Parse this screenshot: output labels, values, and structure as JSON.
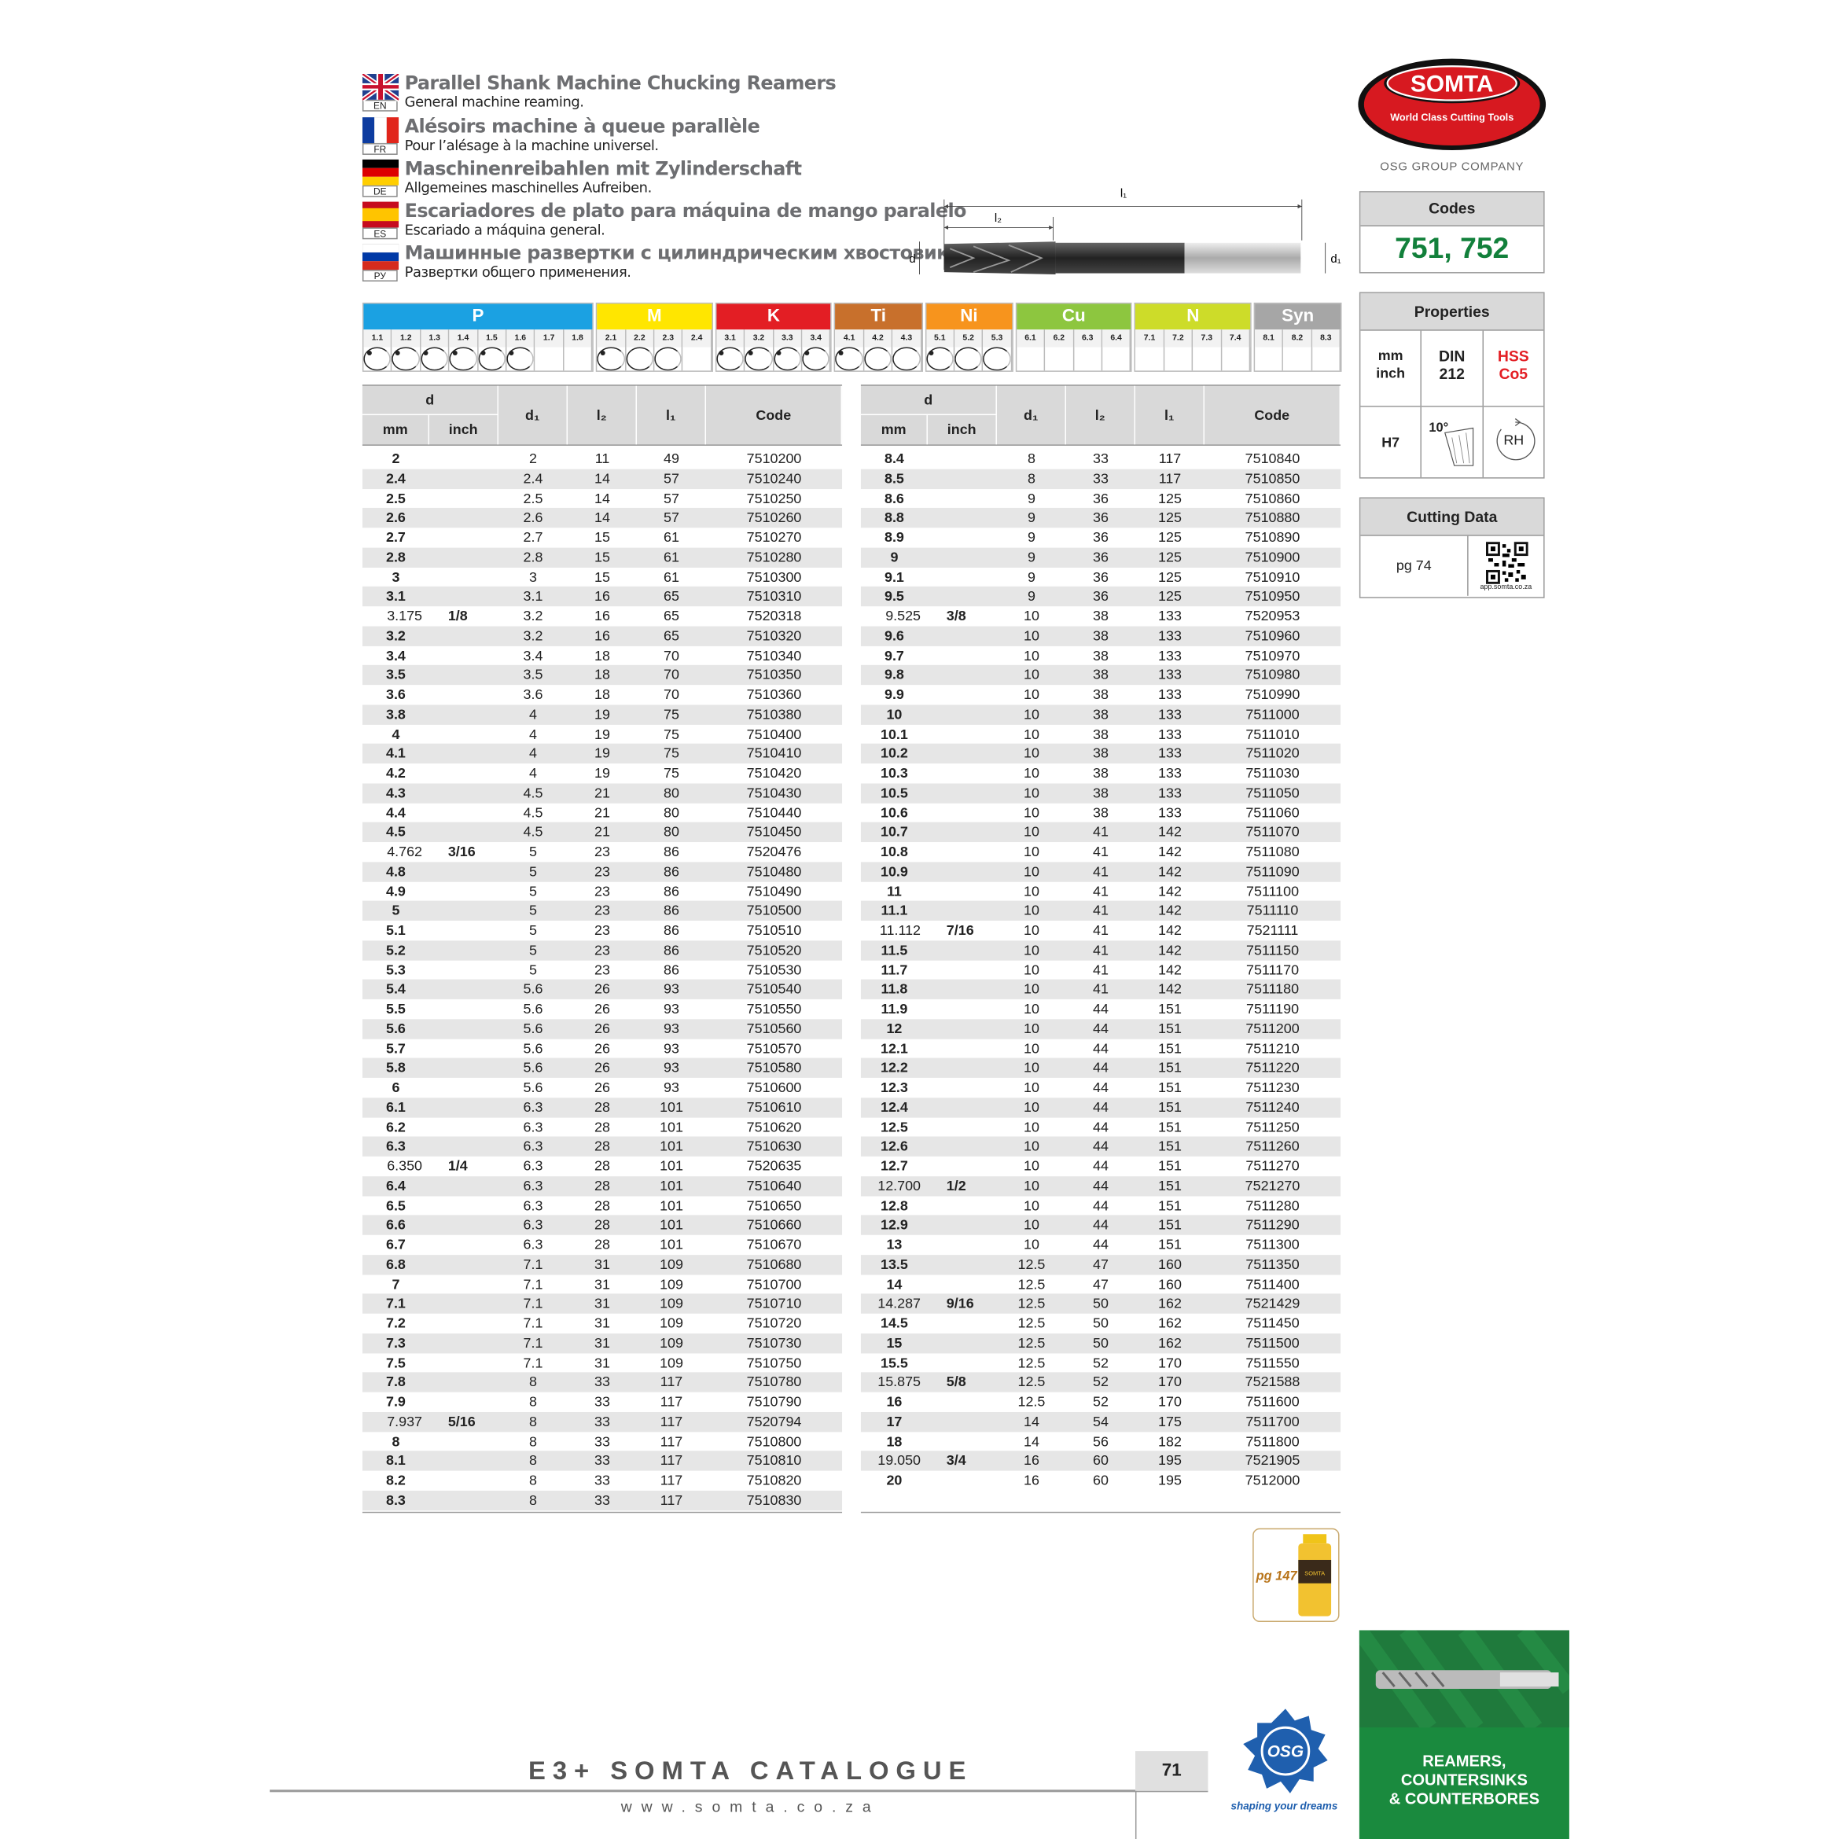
{
  "header": {
    "languages": [
      {
        "code": "EN",
        "title": "Parallel Shank Machine Chucking Reamers",
        "subtitle": "General machine reaming."
      },
      {
        "code": "FR",
        "title": "Alésoirs machine à queue parallèle",
        "subtitle": "Pour l’alésage à la machine universel."
      },
      {
        "code": "DE",
        "title": "Maschinenreibahlen mit Zylinderschaft",
        "subtitle": "Allgemeines maschinelles Aufreiben."
      },
      {
        "code": "ES",
        "title": "Escariadores de plato para máquina de mango paralelo",
        "subtitle": "Escariado a máquina general."
      },
      {
        "code": "РУ",
        "title": "Машинные развертки с цилиндрическим хвостовиком",
        "subtitle": "Развертки общего применения."
      }
    ]
  },
  "logo": {
    "name": "SOMTA",
    "tagline": "World Class Cutting Tools",
    "group": "OSG GROUP COMPANY"
  },
  "drawing": {
    "l1": "l₁",
    "l2": "l₂",
    "d": "d",
    "d1": "d₁"
  },
  "materials": [
    {
      "name": "P",
      "color": "#1ba1e2",
      "grades": [
        "1.1",
        "1.2",
        "1.3",
        "1.4",
        "1.5",
        "1.6",
        "1.7",
        "1.8"
      ],
      "suitability": [
        "full",
        "full",
        "full",
        "full",
        "full",
        "full",
        null,
        null
      ]
    },
    {
      "name": "M",
      "color": "#ffe600",
      "grades": [
        "2.1",
        "2.2",
        "2.3",
        "2.4"
      ],
      "suitability": [
        "full",
        "open",
        "open",
        null
      ]
    },
    {
      "name": "K",
      "color": "#e31e24",
      "grades": [
        "3.1",
        "3.2",
        "3.3",
        "3.4"
      ],
      "suitability": [
        "full",
        "full",
        "full",
        "full"
      ]
    },
    {
      "name": "Ti",
      "color": "#c8702c",
      "grades": [
        "4.1",
        "4.2",
        "4.3"
      ],
      "suitability": [
        "full",
        "open",
        "open"
      ]
    },
    {
      "name": "Ni",
      "color": "#f7941d",
      "grades": [
        "5.1",
        "5.2",
        "5.3"
      ],
      "suitability": [
        "full",
        "open",
        "open"
      ]
    },
    {
      "name": "Cu",
      "color": "#8dc63f",
      "grades": [
        "6.1",
        "6.2",
        "6.3",
        "6.4"
      ],
      "suitability": [
        null,
        null,
        null,
        null
      ]
    },
    {
      "name": "N",
      "color": "#cddc29",
      "grades": [
        "7.1",
        "7.2",
        "7.3",
        "7.4"
      ],
      "suitability": [
        null,
        null,
        null,
        null
      ]
    },
    {
      "name": "Syn",
      "color": "#a6a6a6",
      "grades": [
        "8.1",
        "8.2",
        "8.3"
      ],
      "suitability": [
        null,
        null,
        null
      ]
    }
  ],
  "table_headers": {
    "d": "d",
    "mm": "mm",
    "inch": "inch",
    "d1": "d₁",
    "l2": "l₂",
    "l1": "l₁",
    "code": "Code"
  },
  "tables": [
    [
      [
        "2",
        null,
        "2",
        "11",
        "49",
        "7510200"
      ],
      [
        "2.4",
        null,
        "2.4",
        "14",
        "57",
        "7510240"
      ],
      [
        "2.5",
        null,
        "2.5",
        "14",
        "57",
        "7510250"
      ],
      [
        "2.6",
        null,
        "2.6",
        "14",
        "57",
        "7510260"
      ],
      [
        "2.7",
        null,
        "2.7",
        "15",
        "61",
        "7510270"
      ],
      [
        "2.8",
        null,
        "2.8",
        "15",
        "61",
        "7510280"
      ],
      [
        "3",
        null,
        "3",
        "15",
        "61",
        "7510300"
      ],
      [
        "3.1",
        null,
        "3.1",
        "16",
        "65",
        "7510310"
      ],
      [
        "3.175",
        "1/8",
        "3.2",
        "16",
        "65",
        "7520318"
      ],
      [
        "3.2",
        null,
        "3.2",
        "16",
        "65",
        "7510320"
      ],
      [
        "3.4",
        null,
        "3.4",
        "18",
        "70",
        "7510340"
      ],
      [
        "3.5",
        null,
        "3.5",
        "18",
        "70",
        "7510350"
      ],
      [
        "3.6",
        null,
        "3.6",
        "18",
        "70",
        "7510360"
      ],
      [
        "3.8",
        null,
        "4",
        "19",
        "75",
        "7510380"
      ],
      [
        "4",
        null,
        "4",
        "19",
        "75",
        "7510400"
      ],
      [
        "4.1",
        null,
        "4",
        "19",
        "75",
        "7510410"
      ],
      [
        "4.2",
        null,
        "4",
        "19",
        "75",
        "7510420"
      ],
      [
        "4.3",
        null,
        "4.5",
        "21",
        "80",
        "7510430"
      ],
      [
        "4.4",
        null,
        "4.5",
        "21",
        "80",
        "7510440"
      ],
      [
        "4.5",
        null,
        "4.5",
        "21",
        "80",
        "7510450"
      ],
      [
        "4.762",
        "3/16",
        "5",
        "23",
        "86",
        "7520476"
      ],
      [
        "4.8",
        null,
        "5",
        "23",
        "86",
        "7510480"
      ],
      [
        "4.9",
        null,
        "5",
        "23",
        "86",
        "7510490"
      ],
      [
        "5",
        null,
        "5",
        "23",
        "86",
        "7510500"
      ],
      [
        "5.1",
        null,
        "5",
        "23",
        "86",
        "7510510"
      ],
      [
        "5.2",
        null,
        "5",
        "23",
        "86",
        "7510520"
      ],
      [
        "5.3",
        null,
        "5",
        "23",
        "86",
        "7510530"
      ],
      [
        "5.4",
        null,
        "5.6",
        "26",
        "93",
        "7510540"
      ],
      [
        "5.5",
        null,
        "5.6",
        "26",
        "93",
        "7510550"
      ],
      [
        "5.6",
        null,
        "5.6",
        "26",
        "93",
        "7510560"
      ],
      [
        "5.7",
        null,
        "5.6",
        "26",
        "93",
        "7510570"
      ],
      [
        "5.8",
        null,
        "5.6",
        "26",
        "93",
        "7510580"
      ],
      [
        "6",
        null,
        "5.6",
        "26",
        "93",
        "7510600"
      ],
      [
        "6.1",
        null,
        "6.3",
        "28",
        "101",
        "7510610"
      ],
      [
        "6.2",
        null,
        "6.3",
        "28",
        "101",
        "7510620"
      ],
      [
        "6.3",
        null,
        "6.3",
        "28",
        "101",
        "7510630"
      ],
      [
        "6.350",
        "1/4",
        "6.3",
        "28",
        "101",
        "7520635"
      ],
      [
        "6.4",
        null,
        "6.3",
        "28",
        "101",
        "7510640"
      ],
      [
        "6.5",
        null,
        "6.3",
        "28",
        "101",
        "7510650"
      ],
      [
        "6.6",
        null,
        "6.3",
        "28",
        "101",
        "7510660"
      ],
      [
        "6.7",
        null,
        "6.3",
        "28",
        "101",
        "7510670"
      ],
      [
        "6.8",
        null,
        "7.1",
        "31",
        "109",
        "7510680"
      ],
      [
        "7",
        null,
        "7.1",
        "31",
        "109",
        "7510700"
      ],
      [
        "7.1",
        null,
        "7.1",
        "31",
        "109",
        "7510710"
      ],
      [
        "7.2",
        null,
        "7.1",
        "31",
        "109",
        "7510720"
      ],
      [
        "7.3",
        null,
        "7.1",
        "31",
        "109",
        "7510730"
      ],
      [
        "7.5",
        null,
        "7.1",
        "31",
        "109",
        "7510750"
      ],
      [
        "7.8",
        null,
        "8",
        "33",
        "117",
        "7510780"
      ],
      [
        "7.9",
        null,
        "8",
        "33",
        "117",
        "7510790"
      ],
      [
        "7.937",
        "5/16",
        "8",
        "33",
        "117",
        "7520794"
      ],
      [
        "8",
        null,
        "8",
        "33",
        "117",
        "7510800"
      ],
      [
        "8.1",
        null,
        "8",
        "33",
        "117",
        "7510810"
      ],
      [
        "8.2",
        null,
        "8",
        "33",
        "117",
        "7510820"
      ],
      [
        "8.3",
        null,
        "8",
        "33",
        "117",
        "7510830"
      ]
    ],
    [
      [
        "8.4",
        null,
        "8",
        "33",
        "117",
        "7510840"
      ],
      [
        "8.5",
        null,
        "8",
        "33",
        "117",
        "7510850"
      ],
      [
        "8.6",
        null,
        "9",
        "36",
        "125",
        "7510860"
      ],
      [
        "8.8",
        null,
        "9",
        "36",
        "125",
        "7510880"
      ],
      [
        "8.9",
        null,
        "9",
        "36",
        "125",
        "7510890"
      ],
      [
        "9",
        null,
        "9",
        "36",
        "125",
        "7510900"
      ],
      [
        "9.1",
        null,
        "9",
        "36",
        "125",
        "7510910"
      ],
      [
        "9.5",
        null,
        "9",
        "36",
        "125",
        "7510950"
      ],
      [
        "9.525",
        "3/8",
        "10",
        "38",
        "133",
        "7520953"
      ],
      [
        "9.6",
        null,
        "10",
        "38",
        "133",
        "7510960"
      ],
      [
        "9.7",
        null,
        "10",
        "38",
        "133",
        "7510970"
      ],
      [
        "9.8",
        null,
        "10",
        "38",
        "133",
        "7510980"
      ],
      [
        "9.9",
        null,
        "10",
        "38",
        "133",
        "7510990"
      ],
      [
        "10",
        null,
        "10",
        "38",
        "133",
        "7511000"
      ],
      [
        "10.1",
        null,
        "10",
        "38",
        "133",
        "7511010"
      ],
      [
        "10.2",
        null,
        "10",
        "38",
        "133",
        "7511020"
      ],
      [
        "10.3",
        null,
        "10",
        "38",
        "133",
        "7511030"
      ],
      [
        "10.5",
        null,
        "10",
        "38",
        "133",
        "7511050"
      ],
      [
        "10.6",
        null,
        "10",
        "38",
        "133",
        "7511060"
      ],
      [
        "10.7",
        null,
        "10",
        "41",
        "142",
        "7511070"
      ],
      [
        "10.8",
        null,
        "10",
        "41",
        "142",
        "7511080"
      ],
      [
        "10.9",
        null,
        "10",
        "41",
        "142",
        "7511090"
      ],
      [
        "11",
        null,
        "10",
        "41",
        "142",
        "7511100"
      ],
      [
        "11.1",
        null,
        "10",
        "41",
        "142",
        "7511110"
      ],
      [
        "11.112",
        "7/16",
        "10",
        "41",
        "142",
        "7521111"
      ],
      [
        "11.5",
        null,
        "10",
        "41",
        "142",
        "7511150"
      ],
      [
        "11.7",
        null,
        "10",
        "41",
        "142",
        "7511170"
      ],
      [
        "11.8",
        null,
        "10",
        "41",
        "142",
        "7511180"
      ],
      [
        "11.9",
        null,
        "10",
        "44",
        "151",
        "7511190"
      ],
      [
        "12",
        null,
        "10",
        "44",
        "151",
        "7511200"
      ],
      [
        "12.1",
        null,
        "10",
        "44",
        "151",
        "7511210"
      ],
      [
        "12.2",
        null,
        "10",
        "44",
        "151",
        "7511220"
      ],
      [
        "12.3",
        null,
        "10",
        "44",
        "151",
        "7511230"
      ],
      [
        "12.4",
        null,
        "10",
        "44",
        "151",
        "7511240"
      ],
      [
        "12.5",
        null,
        "10",
        "44",
        "151",
        "7511250"
      ],
      [
        "12.6",
        null,
        "10",
        "44",
        "151",
        "7511260"
      ],
      [
        "12.7",
        null,
        "10",
        "44",
        "151",
        "7511270"
      ],
      [
        "12.700",
        "1/2",
        "10",
        "44",
        "151",
        "7521270"
      ],
      [
        "12.8",
        null,
        "10",
        "44",
        "151",
        "7511280"
      ],
      [
        "12.9",
        null,
        "10",
        "44",
        "151",
        "7511290"
      ],
      [
        "13",
        null,
        "10",
        "44",
        "151",
        "7511300"
      ],
      [
        "13.5",
        null,
        "12.5",
        "47",
        "160",
        "7511350"
      ],
      [
        "14",
        null,
        "12.5",
        "47",
        "160",
        "7511400"
      ],
      [
        "14.287",
        "9/16",
        "12.5",
        "50",
        "162",
        "7521429"
      ],
      [
        "14.5",
        null,
        "12.5",
        "50",
        "162",
        "7511450"
      ],
      [
        "15",
        null,
        "12.5",
        "50",
        "162",
        "7511500"
      ],
      [
        "15.5",
        null,
        "12.5",
        "52",
        "170",
        "7511550"
      ],
      [
        "15.875",
        "5/8",
        "12.5",
        "52",
        "170",
        "7521588"
      ],
      [
        "16",
        null,
        "12.5",
        "52",
        "170",
        "7511600"
      ],
      [
        "17",
        null,
        "14",
        "54",
        "175",
        "7511700"
      ],
      [
        "18",
        null,
        "14",
        "56",
        "182",
        "7511800"
      ],
      [
        "19.050",
        "3/4",
        "16",
        "60",
        "195",
        "7521905"
      ],
      [
        "20",
        null,
        "16",
        "60",
        "195",
        "7512000"
      ]
    ]
  ],
  "codes_panel": {
    "title": "Codes",
    "value": "751, 752"
  },
  "properties_panel": {
    "title": "Properties",
    "units": [
      "mm",
      "inch"
    ],
    "standard": [
      "DIN",
      "212"
    ],
    "material": [
      "HSS",
      "Co5"
    ],
    "tolerance": "H7",
    "angle": "10°",
    "rotation": "RH"
  },
  "cutting_panel": {
    "title": "Cutting Data",
    "page": "pg 74",
    "url": "app.somta.co.za"
  },
  "coolant": {
    "page": "pg 147"
  },
  "footer": {
    "catalogue": "E3+ SOMTA CATALOGUE",
    "website": "www.somta.co.za",
    "page_number": "71",
    "osg": "OSG",
    "slogan": "shaping your dreams",
    "section": [
      "REAMERS,",
      "COUNTERSINKS",
      "& COUNTERBORES"
    ]
  }
}
